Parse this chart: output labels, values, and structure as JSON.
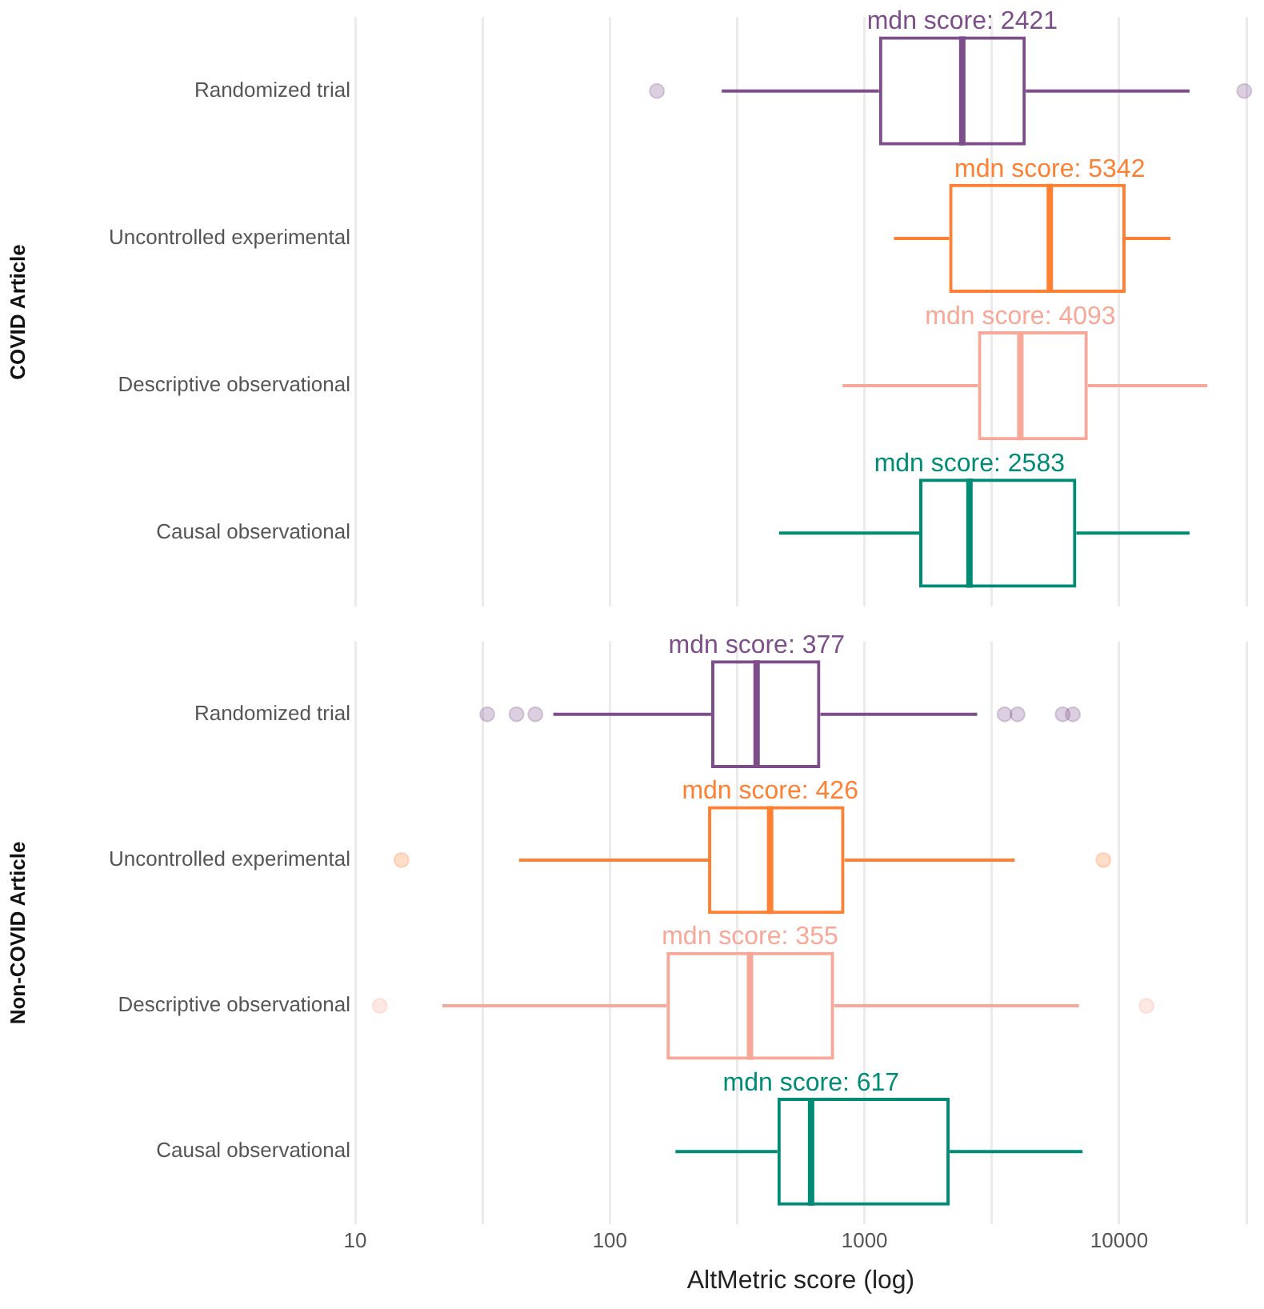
{
  "chart_data": [
    {
      "type": "box",
      "orientation": "horizontal",
      "log": "x",
      "ylabel": "COVID Article",
      "categories": [
        "Randomized trial",
        "Uncontrolled experimental",
        "Descriptive observational",
        "Causal observational"
      ],
      "colors": [
        "#7d4e8a",
        "#ff8033",
        "#f7a898",
        "#008c74"
      ],
      "boxes": [
        {
          "low": 275,
          "q1": 1140,
          "median": 2421,
          "q3": 4300,
          "high": 18900,
          "outliers": [
            153,
            31000
          ]
        },
        {
          "low": 1305,
          "q1": 2150,
          "median": 5342,
          "q3": 10600,
          "high": 15900
        },
        {
          "low": 820,
          "q1": 2790,
          "median": 4093,
          "q3": 7530,
          "high": 22200
        },
        {
          "low": 462,
          "q1": 1640,
          "median": 2583,
          "q3": 6790,
          "high": 18900
        }
      ],
      "annotations": [
        {
          "text": "mdn score: 2421",
          "x": 2421,
          "y": "Randomized trial"
        },
        {
          "text": "mdn score: 5342",
          "x": 5342,
          "y": "Uncontrolled experimental"
        },
        {
          "text": "mdn score: 4093",
          "x": 4093,
          "y": "Descriptive observational"
        },
        {
          "text": "mdn score: 2583",
          "x": 2583,
          "y": "Causal observational"
        }
      ],
      "xlim": [
        10,
        31600
      ],
      "xticks": [
        10,
        {
          "value": 31.6,
          "label": null
        },
        100,
        {
          "value": 316,
          "label": null
        },
        1000,
        {
          "value": 3160,
          "label": null
        },
        10000,
        {
          "value": 31600,
          "label": null
        }
      ],
      "tick_labels": "y",
      "grid": "x"
    },
    {
      "type": "box",
      "orientation": "horizontal",
      "log": "x",
      "ylabel": "Non-COVID Article",
      "xlabel": "AltMetric score (log)",
      "categories": [
        "Randomized trial",
        "Uncontrolled experimental",
        "Descriptive observational",
        "Causal observational"
      ],
      "colors": [
        "#7d4e8a",
        "#ff8033",
        "#f7a898",
        "#008c74"
      ],
      "boxes": [
        {
          "low": 60,
          "q1": 250,
          "median": 377,
          "q3": 671,
          "high": 2770,
          "outliers": [
            33,
            43,
            51,
            3550,
            3990,
            6000,
            6580
          ]
        },
        {
          "low": 44,
          "q1": 243,
          "median": 426,
          "q3": 834,
          "high": 3890,
          "outliers": [
            15.2,
            8670
          ]
        },
        {
          "low": 22,
          "q1": 167,
          "median": 355,
          "q3": 760,
          "high": 6950,
          "outliers": [
            12.5,
            12800
          ]
        },
        {
          "low": 181,
          "q1": 455,
          "median": 617,
          "q3": 2160,
          "high": 7180
        }
      ],
      "annotations": [
        {
          "text": "mdn score: 377",
          "x": 377,
          "y": "Randomized trial"
        },
        {
          "text": "mdn score: 426",
          "x": 426,
          "y": "Uncontrolled experimental"
        },
        {
          "text": "mdn score: 355",
          "x": 355,
          "y": "Descriptive observational"
        },
        {
          "text": "mdn score: 617",
          "x": 617,
          "y": "Causal observational"
        }
      ],
      "xlim": [
        10,
        31600
      ],
      "xticks": [
        10,
        {
          "value": 31.6,
          "label": null
        },
        100,
        {
          "value": 316,
          "label": null
        },
        1000,
        {
          "value": 3160,
          "label": null
        },
        10000,
        {
          "value": 31600,
          "label": null
        }
      ],
      "grid": "x"
    }
  ]
}
